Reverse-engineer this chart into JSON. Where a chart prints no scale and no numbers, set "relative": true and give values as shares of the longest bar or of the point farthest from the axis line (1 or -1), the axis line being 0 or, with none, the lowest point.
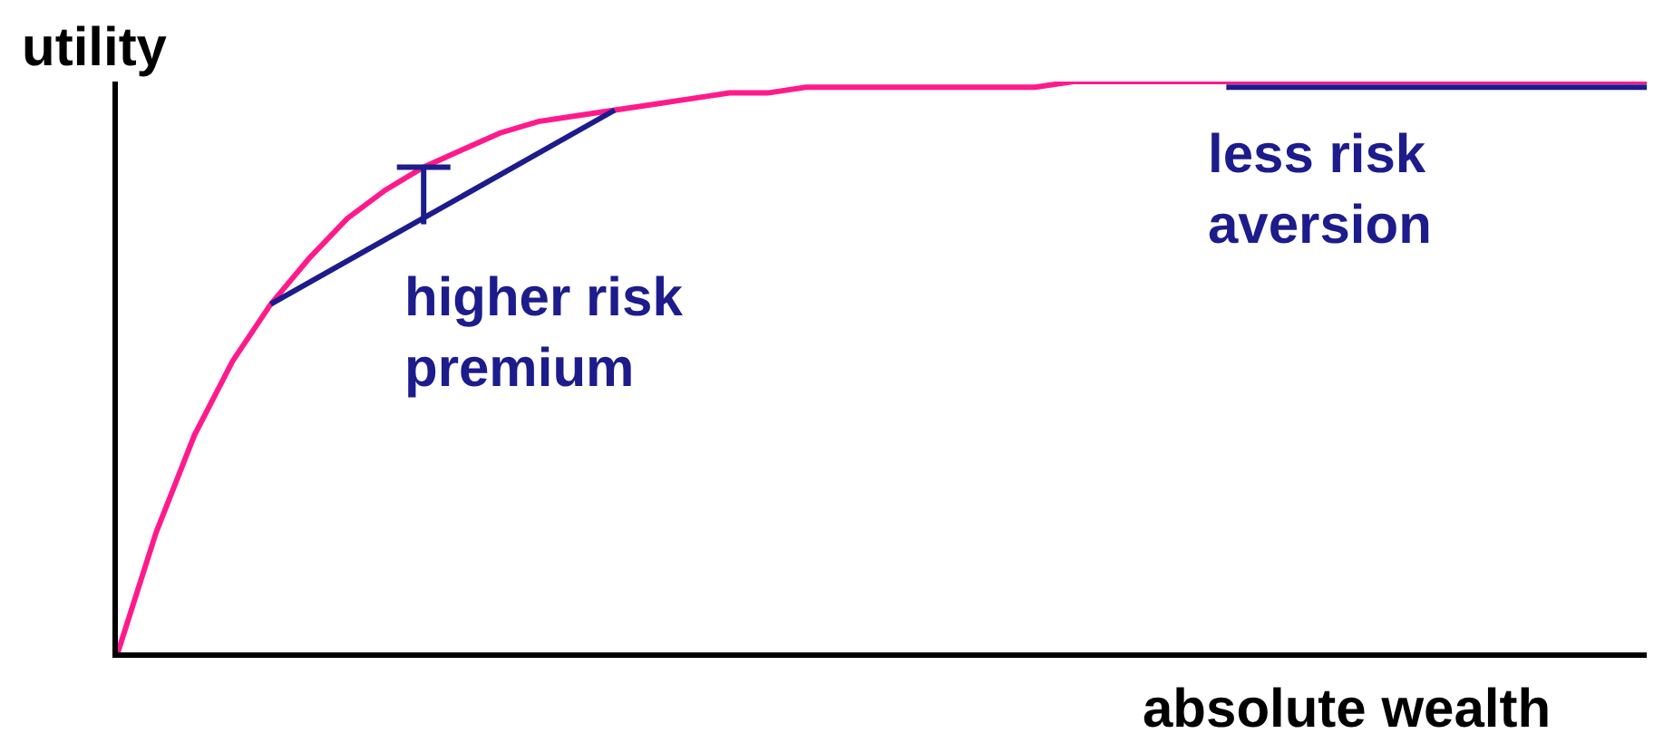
{
  "chart_data": {
    "type": "line",
    "relative": true,
    "xlabel": "absolute wealth",
    "ylabel": "utility",
    "categories": [
      null,
      null,
      null,
      null,
      null,
      null,
      null,
      null,
      null,
      null,
      null,
      null,
      null,
      null,
      null,
      null,
      null,
      null,
      null,
      null,
      null,
      null,
      null,
      null,
      null,
      null,
      null,
      null,
      null,
      null,
      null,
      null,
      null,
      null,
      null,
      null,
      null,
      null,
      null,
      null,
      null
    ],
    "series": [
      {
        "color": "#ff1a8c",
        "values": [
          0,
          0.21,
          0.38,
          0.51,
          0.61,
          0.69,
          0.76,
          0.81,
          0.85,
          0.88,
          0.91,
          0.93,
          0.94,
          0.95,
          0.96,
          0.97,
          0.98,
          0.98,
          0.99,
          0.99,
          0.99,
          0.99,
          0.99,
          0.99,
          0.99,
          1,
          1,
          1,
          1,
          1,
          1,
          1,
          1,
          1,
          1,
          1,
          1,
          1,
          1,
          1,
          1
        ]
      },
      {
        "color": "#1c1c8c",
        "values": [
          null,
          null,
          null,
          null,
          0.61,
          null,
          null,
          null,
          null,
          null,
          null,
          null,
          null,
          0.95,
          null,
          null,
          null,
          null,
          null,
          null,
          null,
          null,
          null,
          null,
          null,
          null,
          null,
          null,
          null,
          null,
          null,
          null,
          null,
          null,
          null,
          null,
          null,
          null,
          null,
          null,
          null
        ]
      },
      {
        "color": "#1c1c8c",
        "values": [
          null,
          null,
          null,
          null,
          null,
          null,
          null,
          null,
          null,
          null,
          null,
          null,
          null,
          null,
          null,
          null,
          null,
          null,
          null,
          null,
          null,
          null,
          null,
          null,
          null,
          null,
          null,
          null,
          null,
          0.99,
          0.99,
          0.99,
          0.99,
          0.99,
          0.99,
          0.99,
          0.99,
          0.99,
          0.99,
          0.99,
          0.99
        ]
      }
    ],
    "annotations": [
      "higher risk\npremium",
      "less risk\naversion"
    ]
  }
}
